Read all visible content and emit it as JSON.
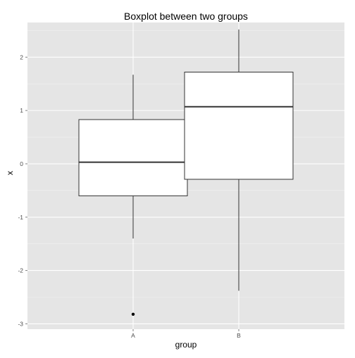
{
  "chart_data": {
    "type": "boxplot",
    "title": "Boxplot between two groups",
    "xlabel": "group",
    "ylabel": "x",
    "categories": [
      "A",
      "B"
    ],
    "boxes": [
      {
        "group": "A",
        "whisker_low": -1.4,
        "q1": -0.6,
        "median": 0.03,
        "q3": 0.83,
        "whisker_high": 1.67,
        "outliers": [
          -2.82
        ]
      },
      {
        "group": "B",
        "whisker_low": -2.38,
        "q1": -0.29,
        "median": 1.07,
        "q3": 1.72,
        "whisker_high": 2.52,
        "outliers": []
      }
    ],
    "y_ticks": [
      -3,
      -2,
      -1,
      0,
      1,
      2
    ],
    "y_tick_labels": [
      "-3",
      "-2",
      "-1",
      "0",
      "1",
      "2"
    ],
    "ylim": [
      -3.1,
      2.65
    ],
    "grid": true,
    "colors": {
      "panel_background": "#e5e5e5",
      "grid_major": "#ffffff",
      "grid_minor": "#f2f2f2",
      "box_fill": "#ffffff",
      "box_stroke": "#333333",
      "outlier": "#000000"
    }
  }
}
